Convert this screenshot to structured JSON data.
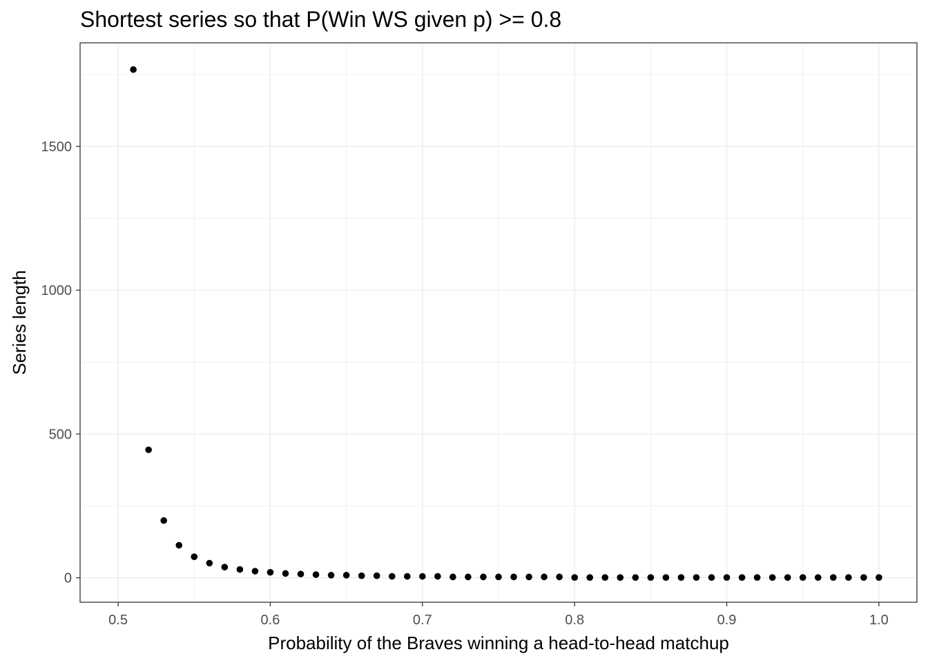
{
  "chart_data": {
    "type": "scatter",
    "title": "Shortest series so that P(Win WS given p) >= 0.8",
    "xlabel": "Probability of the Braves winning a head-to-head matchup",
    "ylabel": "Series length",
    "xlim": [
      0.475,
      1.025
    ],
    "ylim": [
      -85,
      1860
    ],
    "x_ticks": [
      0.5,
      0.6,
      0.7,
      0.8,
      0.9,
      1.0
    ],
    "x_tick_labels": [
      "0.5",
      "0.6",
      "0.7",
      "0.8",
      "0.9",
      "1.0"
    ],
    "y_ticks": [
      0,
      500,
      1000,
      1500
    ],
    "y_tick_labels": [
      "0",
      "500",
      "1000",
      "1500"
    ],
    "grid": true,
    "theme": "bw",
    "point_color": "#000000",
    "series": [
      {
        "x": [
          0.51,
          0.52,
          0.53,
          0.54,
          0.55,
          0.56,
          0.57,
          0.58,
          0.59,
          0.6,
          0.61,
          0.62,
          0.63,
          0.64,
          0.65,
          0.66,
          0.67,
          0.68,
          0.69,
          0.7,
          0.71,
          0.72,
          0.73,
          0.74,
          0.75,
          0.76,
          0.77,
          0.78,
          0.79,
          0.8,
          0.81,
          0.82,
          0.83,
          0.84,
          0.85,
          0.86,
          0.87,
          0.88,
          0.89,
          0.9,
          0.91,
          0.92,
          0.93,
          0.94,
          0.95,
          0.96,
          0.97,
          0.98,
          0.99,
          1.0
        ],
        "y": [
          1767,
          445,
          199,
          113,
          73,
          51,
          37,
          29,
          23,
          19,
          15,
          13,
          11,
          9,
          9,
          7,
          7,
          5,
          5,
          5,
          5,
          3,
          3,
          3,
          3,
          3,
          3,
          3,
          3,
          1,
          1,
          1,
          1,
          1,
          1,
          1,
          1,
          1,
          1,
          1,
          1,
          1,
          1,
          1,
          1,
          1,
          1,
          1,
          1,
          1
        ]
      }
    ]
  }
}
